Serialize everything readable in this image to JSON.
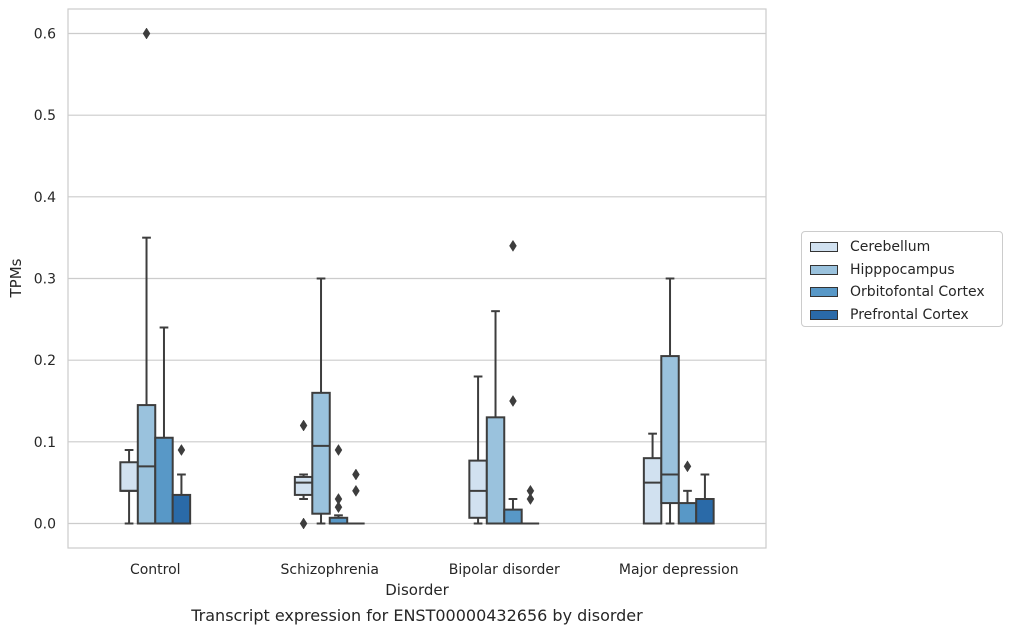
{
  "chart_data": {
    "type": "box",
    "title": "Transcript expression for ENST00000432656 by disorder",
    "xlabel": "Disorder",
    "ylabel": "TPMs",
    "categories": [
      "Control",
      "Schizophrenia",
      "Bipolar disorder",
      "Major depression"
    ],
    "ylim": [
      -0.03,
      0.63
    ],
    "yticks": [
      "0.0",
      "0.1",
      "0.2",
      "0.3",
      "0.4",
      "0.5",
      "0.6"
    ],
    "grid": true,
    "legend_position": "right",
    "series": [
      {
        "name": "Cerebellum",
        "color": "#d1e1f0",
        "boxes": [
          {
            "whislo": 0.0,
            "q1": 0.04,
            "med": 0.04,
            "q3": 0.075,
            "whishi": 0.09,
            "fliers": []
          },
          {
            "whislo": 0.03,
            "q1": 0.035,
            "med": 0.05,
            "q3": 0.057,
            "whishi": 0.06,
            "fliers": [
              0.12,
              0.0
            ]
          },
          {
            "whislo": 0.0,
            "q1": 0.007,
            "med": 0.04,
            "q3": 0.077,
            "whishi": 0.18,
            "fliers": []
          },
          {
            "whislo": 0.0,
            "q1": 0.0,
            "med": 0.05,
            "q3": 0.08,
            "whishi": 0.11,
            "fliers": []
          }
        ]
      },
      {
        "name": "Hipppocampus",
        "color": "#9ac2dd",
        "boxes": [
          {
            "whislo": 0.0,
            "q1": 0.0,
            "med": 0.07,
            "q3": 0.145,
            "whishi": 0.35,
            "fliers": [
              0.6
            ]
          },
          {
            "whislo": 0.0,
            "q1": 0.012,
            "med": 0.095,
            "q3": 0.16,
            "whishi": 0.3,
            "fliers": []
          },
          {
            "whislo": 0.0,
            "q1": 0.0,
            "med": 0.0,
            "q3": 0.13,
            "whishi": 0.26,
            "fliers": []
          },
          {
            "whislo": 0.0,
            "q1": 0.025,
            "med": 0.06,
            "q3": 0.205,
            "whishi": 0.3,
            "fliers": []
          }
        ]
      },
      {
        "name": "Orbitofontal Cortex",
        "color": "#5898c7",
        "boxes": [
          {
            "whislo": 0.0,
            "q1": 0.0,
            "med": 0.0,
            "q3": 0.105,
            "whishi": 0.24,
            "fliers": []
          },
          {
            "whislo": 0.0,
            "q1": 0.0,
            "med": 0.0,
            "q3": 0.007,
            "whishi": 0.01,
            "fliers": [
              0.09,
              0.03,
              0.02
            ]
          },
          {
            "whislo": 0.0,
            "q1": 0.0,
            "med": 0.0,
            "q3": 0.017,
            "whishi": 0.03,
            "fliers": [
              0.34,
              0.15
            ]
          },
          {
            "whislo": 0.0,
            "q1": 0.0,
            "med": 0.0,
            "q3": 0.025,
            "whishi": 0.04,
            "fliers": [
              0.07
            ]
          }
        ]
      },
      {
        "name": "Prefrontal Cortex",
        "color": "#2a6aa8",
        "boxes": [
          {
            "whislo": 0.0,
            "q1": 0.0,
            "med": 0.0,
            "q3": 0.035,
            "whishi": 0.06,
            "fliers": [
              0.09
            ]
          },
          {
            "whislo": 0.0,
            "q1": 0.0,
            "med": 0.0,
            "q3": 0.0,
            "whishi": 0.0,
            "fliers": [
              0.06,
              0.04
            ]
          },
          {
            "whislo": 0.0,
            "q1": 0.0,
            "med": 0.0,
            "q3": 0.0,
            "whishi": 0.0,
            "fliers": [
              0.04,
              0.03
            ]
          },
          {
            "whislo": 0.0,
            "q1": 0.0,
            "med": 0.0,
            "q3": 0.03,
            "whishi": 0.06,
            "fliers": []
          }
        ]
      }
    ]
  }
}
